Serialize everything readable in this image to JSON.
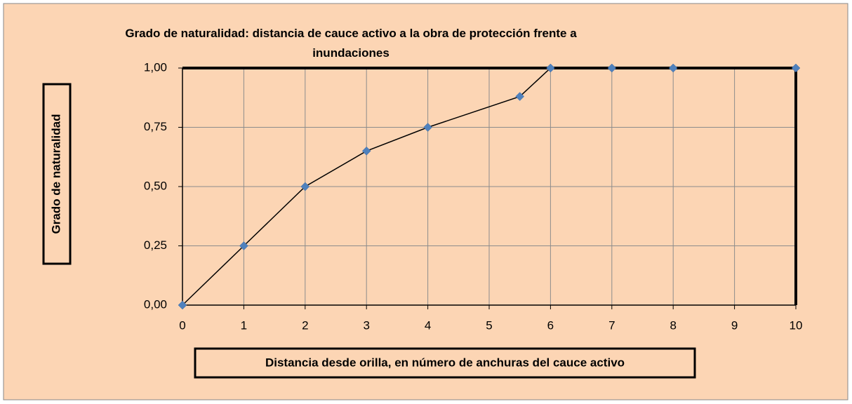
{
  "chart_data": {
    "type": "line",
    "title": "Grado de naturalidad: distancia de cauce activo a la obra de protección frente a inundaciones",
    "xlabel": "Distancia desde orilla, en número de anchuras del cauce activo",
    "ylabel": "Grado de naturalidad",
    "x": [
      0,
      1,
      2,
      3,
      4,
      5.5,
      6,
      7,
      8,
      10
    ],
    "series": [
      {
        "name": "Grado de naturalidad",
        "color": "#4f81bd",
        "line_color": "#000000",
        "values": [
          0,
          0.25,
          0.5,
          0.65,
          0.75,
          0.88,
          1,
          1,
          1,
          1
        ]
      }
    ],
    "xlim": [
      0,
      10
    ],
    "xticks": [
      0,
      1,
      2,
      3,
      4,
      5,
      6,
      7,
      8,
      9,
      10
    ],
    "ylim": [
      0,
      1
    ],
    "yticks": [
      {
        "value": 0,
        "label": "0,00"
      },
      {
        "value": 0.25,
        "label": "0,25"
      },
      {
        "value": 0.5,
        "label": "0,50"
      },
      {
        "value": 0.75,
        "label": "0,75"
      },
      {
        "value": 1,
        "label": "1,00"
      }
    ],
    "grid": true,
    "legend": false
  }
}
